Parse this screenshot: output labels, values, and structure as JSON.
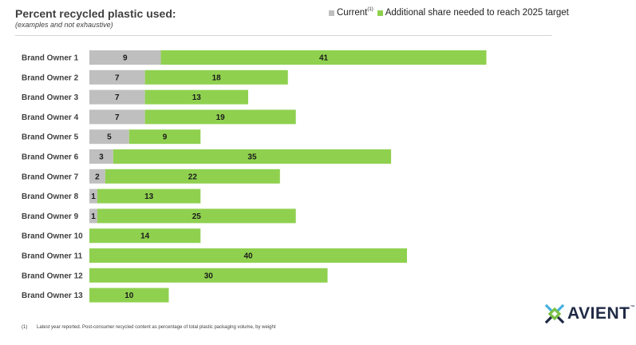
{
  "header": {
    "title": "Percent recycled plastic used:",
    "subtitle": "(examples and not exhaustive)"
  },
  "legend": {
    "current_label": "Current",
    "current_marker": "(1)",
    "additional_label": "Additional share needed to reach 2025 target"
  },
  "colors": {
    "current": "#bfbfbf",
    "additional": "#8fd14f"
  },
  "chart_data": {
    "type": "bar",
    "orientation": "horizontal",
    "stacked": true,
    "categories": [
      "Brand Owner 1",
      "Brand Owner 2",
      "Brand Owner 3",
      "Brand Owner 4",
      "Brand Owner 5",
      "Brand Owner 6",
      "Brand Owner 7",
      "Brand Owner 8",
      "Brand Owner 9",
      "Brand Owner 10",
      "Brand Owner 11",
      "Brand Owner 12",
      "Brand Owner 13"
    ],
    "series": [
      {
        "name": "Current",
        "values": [
          9,
          7,
          7,
          7,
          5,
          3,
          2,
          1,
          1,
          0,
          0,
          0,
          0
        ]
      },
      {
        "name": "Additional share needed to reach 2025 target",
        "values": [
          41,
          18,
          13,
          19,
          9,
          35,
          22,
          13,
          25,
          14,
          40,
          30,
          10
        ]
      }
    ],
    "title": "Percent recycled plastic used:",
    "subtitle": "(examples and not exhaustive)",
    "legend_position": "top-right",
    "grid": false
  },
  "footnote": {
    "marker": "(1)",
    "text": "Latest year reported. Post-consumer recycled content as percentage of total plastic packaging volume, by weight"
  },
  "logo": {
    "text": "AVIENT",
    "tm": "™"
  }
}
